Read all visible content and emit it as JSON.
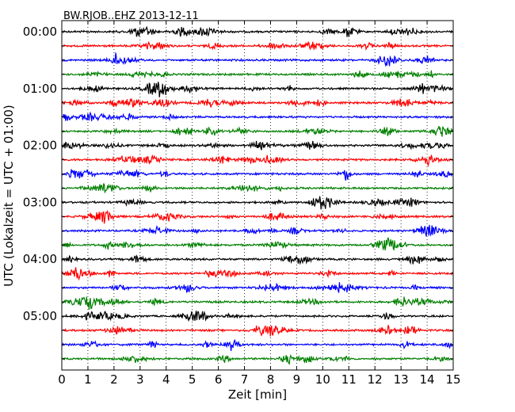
{
  "chart_data": {
    "type": "line",
    "title": "BW.RJOB..EHZ 2013-12-11",
    "xlabel": "Zeit  [min]",
    "ylabel": "UTC (Lokalzeit = UTC + 01:00)",
    "xlim": [
      0,
      15
    ],
    "x_ticks": [
      "0",
      "1",
      "2",
      "3",
      "4",
      "5",
      "6",
      "7",
      "8",
      "9",
      "10",
      "11",
      "12",
      "13",
      "14",
      "15"
    ],
    "grid": "vertical-dotted",
    "traces_per_hour": 4,
    "trace_count": 24,
    "trace_colors": [
      "#000000",
      "#ff0000",
      "#0000ff",
      "#008000"
    ],
    "y_tick_labels": [
      "00:00",
      "01:00",
      "02:00",
      "03:00",
      "04:00",
      "05:00"
    ]
  }
}
